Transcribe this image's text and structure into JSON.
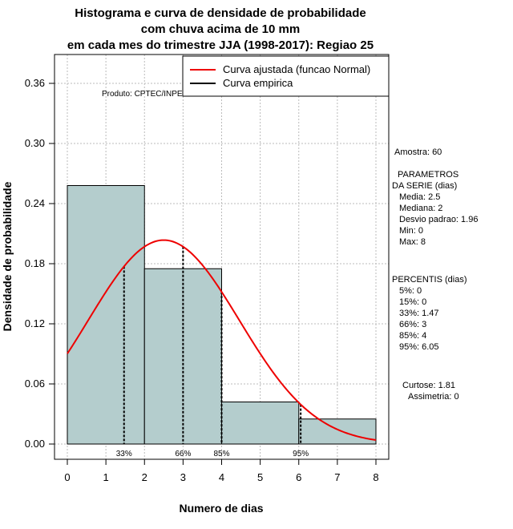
{
  "chart_data": {
    "type": "histogram",
    "title_lines": [
      "Histograma e curva de densidade de probabilidade",
      "com chuva acima de 10 mm",
      "em cada mes do trimestre JJA (1998-2017): Regiao 25"
    ],
    "xlabel": "Numero de dias",
    "ylabel": "Densidade de probabilidade",
    "xlim": [
      0,
      8
    ],
    "ylim": [
      0,
      0.36
    ],
    "x_ticks": [
      0,
      1,
      2,
      3,
      4,
      5,
      6,
      7,
      8
    ],
    "y_ticks": [
      "0.00",
      "0.06",
      "0.12",
      "0.18",
      "0.24",
      "0.30",
      "0.36"
    ],
    "bins": [
      {
        "from": 0,
        "to": 2,
        "density": 0.258
      },
      {
        "from": 2,
        "to": 4,
        "density": 0.175
      },
      {
        "from": 4,
        "to": 6,
        "density": 0.042
      },
      {
        "from": 6,
        "to": 8,
        "density": 0.025
      }
    ],
    "fitted_curve": {
      "distribution": "Normal",
      "mean": 2.5,
      "sd": 1.96,
      "from": 0,
      "to": 8
    },
    "percentile_markers": [
      {
        "label": "33%",
        "x": 1.47
      },
      {
        "label": "66%",
        "x": 3
      },
      {
        "label": "85%",
        "x": 4
      },
      {
        "label": "95%",
        "x": 6.05
      }
    ],
    "legend": [
      {
        "label": "Curva ajustada (funcao Normal)",
        "color": "#ee0000"
      },
      {
        "label": "Curva empirica",
        "color": "#000000"
      }
    ],
    "source_note": "Produto: CPTEC/INPE",
    "grid": true,
    "colors": {
      "bar_fill": "#b4cdcd",
      "curve": "#ee0000",
      "grid": "#bbbbbb"
    }
  },
  "stats_panel": {
    "sample": "Amostra: 60",
    "params_header_1": "PARAMETROS",
    "params_header_2": "DA SERIE (dias)",
    "params": [
      "Media: 2.5",
      "Mediana: 2",
      "Desvio padrao: 1.96",
      "Min: 0",
      "Max: 8"
    ],
    "percentiles_header": "PERCENTIS (dias)",
    "percentiles": [
      "5%: 0",
      "15%: 0",
      "33%: 1.47",
      "66%: 3",
      "85%: 4",
      "95%: 6.05"
    ],
    "kurtosis": "Curtose: 1.81",
    "skewness": "Assimetria: 0"
  }
}
